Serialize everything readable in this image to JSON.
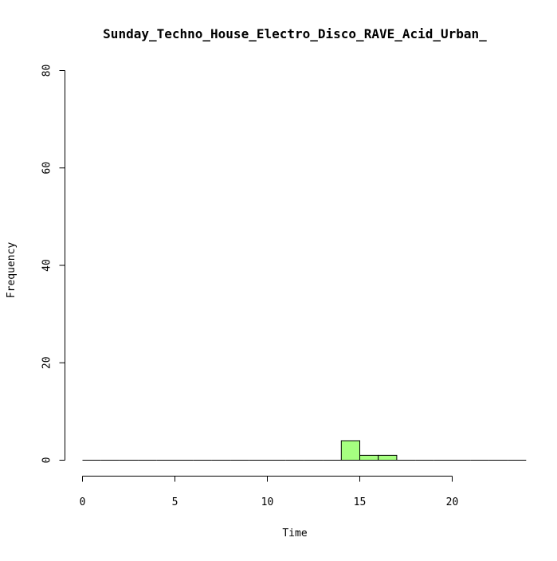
{
  "chart_data": {
    "type": "bar",
    "title": "Sunday_Techno_House_Electro_Disco_RAVE_Acid_Urban_",
    "xlabel": "Time",
    "ylabel": "Frequency",
    "xlim": [
      0,
      24
    ],
    "ylim": [
      0,
      80
    ],
    "x_ticks": [
      0,
      5,
      10,
      15,
      20
    ],
    "y_ticks": [
      0,
      20,
      40,
      60,
      80
    ],
    "bins": [
      {
        "from": 0,
        "to": 1,
        "count": 0
      },
      {
        "from": 1,
        "to": 2,
        "count": 0
      },
      {
        "from": 2,
        "to": 3,
        "count": 0
      },
      {
        "from": 3,
        "to": 4,
        "count": 0
      },
      {
        "from": 4,
        "to": 5,
        "count": 0
      },
      {
        "from": 5,
        "to": 6,
        "count": 0
      },
      {
        "from": 6,
        "to": 7,
        "count": 0
      },
      {
        "from": 7,
        "to": 8,
        "count": 0
      },
      {
        "from": 8,
        "to": 9,
        "count": 0
      },
      {
        "from": 9,
        "to": 10,
        "count": 0
      },
      {
        "from": 10,
        "to": 11,
        "count": 0
      },
      {
        "from": 11,
        "to": 12,
        "count": 0
      },
      {
        "from": 12,
        "to": 13,
        "count": 0
      },
      {
        "from": 13,
        "to": 14,
        "count": 0
      },
      {
        "from": 14,
        "to": 15,
        "count": 4
      },
      {
        "from": 15,
        "to": 16,
        "count": 1
      },
      {
        "from": 16,
        "to": 17,
        "count": 1
      },
      {
        "from": 17,
        "to": 18,
        "count": 0
      },
      {
        "from": 18,
        "to": 19,
        "count": 0
      },
      {
        "from": 19,
        "to": 20,
        "count": 0
      },
      {
        "from": 20,
        "to": 21,
        "count": 0
      },
      {
        "from": 21,
        "to": 22,
        "count": 0
      },
      {
        "from": 22,
        "to": 23,
        "count": 0
      },
      {
        "from": 23,
        "to": 24,
        "count": 0
      }
    ],
    "bar_color": "#a6ff80",
    "bar_border_color": "#000000",
    "grid": false
  }
}
